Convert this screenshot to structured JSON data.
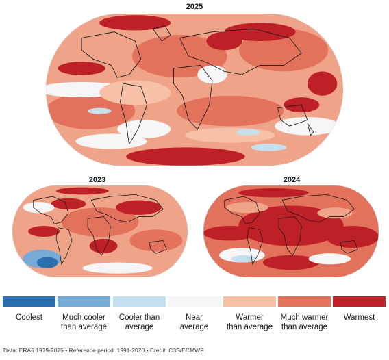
{
  "maps": {
    "main": {
      "title": "2025"
    },
    "left": {
      "title": "2023"
    },
    "right": {
      "title": "2024"
    }
  },
  "legend": {
    "items": [
      {
        "label": "Coolest",
        "color": "#2c6fb0"
      },
      {
        "label": "Much cooler\nthan average",
        "color": "#76abd6"
      },
      {
        "label": "Cooler than\naverage",
        "color": "#c6dfee"
      },
      {
        "label": "Near\naverage",
        "color": "#f6f6f6"
      },
      {
        "label": "Warmer\nthan average",
        "color": "#f6c1a7"
      },
      {
        "label": "Much warmer\nthan average",
        "color": "#e2725b"
      },
      {
        "label": "Warmest",
        "color": "#bd2027"
      }
    ]
  },
  "footer": {
    "credit": "Data: ERA5 1979-2025 • Reference period: 1991-2020 • Credit: C3S/ECMWF"
  }
}
